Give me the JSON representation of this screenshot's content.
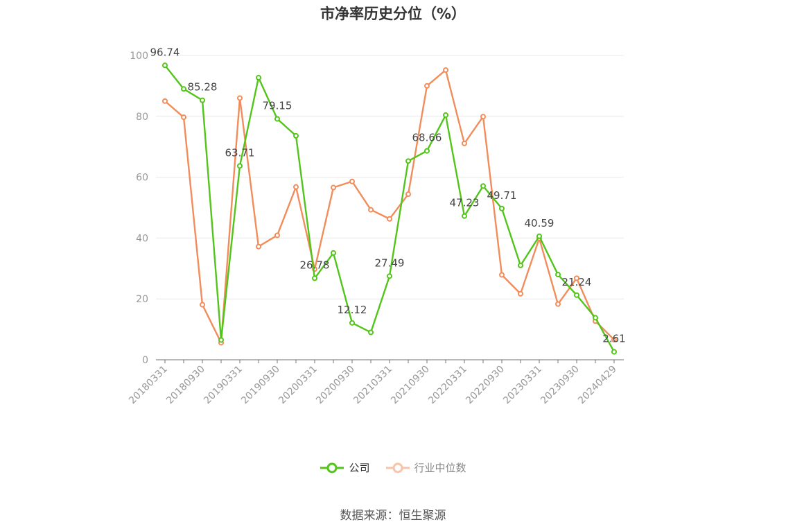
{
  "chart_data": {
    "type": "line",
    "title": "市净率历史分位（%）",
    "ylim": [
      0,
      100
    ],
    "yticks": [
      0,
      20,
      40,
      60,
      80,
      100
    ],
    "grid": "horizontal",
    "legend_position": "bottom",
    "x": [
      "20180331",
      "20180630",
      "20180930",
      "20181231",
      "20190331",
      "20190630",
      "20190930",
      "20191231",
      "20200331",
      "20200630",
      "20200930",
      "20201231",
      "20210331",
      "20210630",
      "20210930",
      "20211231",
      "20220331",
      "20220630",
      "20220930",
      "20221231",
      "20230331",
      "20230630",
      "20230930",
      "20231231",
      "20240429"
    ],
    "x_tick_labels": [
      "20180331",
      "20180930",
      "20190331",
      "20190930",
      "20200331",
      "20200930",
      "20210331",
      "20210930",
      "20220331",
      "20220930",
      "20230331",
      "20230930",
      "20240429"
    ],
    "series": [
      {
        "name": "公司",
        "color": "#52c41a",
        "values": [
          96.74,
          89.0,
          85.28,
          6.5,
          63.71,
          92.7,
          79.15,
          73.6,
          26.78,
          35.1,
          12.12,
          9.0,
          27.49,
          65.3,
          68.66,
          80.4,
          47.23,
          57.1,
          49.71,
          31.0,
          40.59,
          28.0,
          21.24,
          13.8,
          2.61
        ],
        "labels": {
          "0": "96.74",
          "2": "85.28",
          "4": "63.71",
          "6": "79.15",
          "8": "26.78",
          "10": "12.12",
          "12": "27.49",
          "14": "68.66",
          "16": "47.23",
          "18": "49.71",
          "20": "40.59",
          "22": "21.24",
          "24": "2.61"
        }
      },
      {
        "name": "行业中位数",
        "color": "#f28c5a",
        "values": [
          85.0,
          79.7,
          18.1,
          5.6,
          86.0,
          37.2,
          40.9,
          56.8,
          29.8,
          56.6,
          58.6,
          49.3,
          46.3,
          54.4,
          90.0,
          95.2,
          71.1,
          79.9,
          27.9,
          21.7,
          39.9,
          18.3,
          26.8,
          12.7,
          6.6
        ]
      }
    ]
  },
  "source_text": "数据来源：恒生聚源"
}
